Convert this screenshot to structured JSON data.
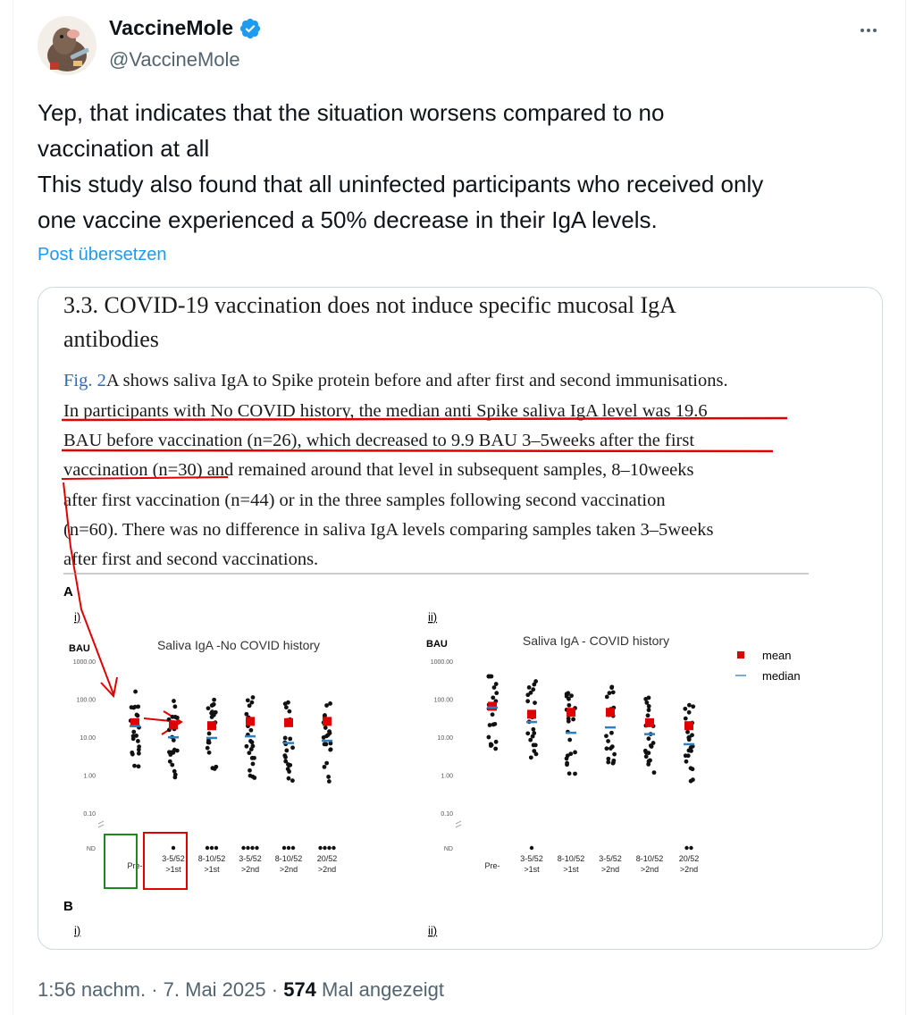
{
  "author": {
    "display_name": "VaccineMole",
    "handle": "@VaccineMole"
  },
  "tweet": {
    "lines": [
      "Yep, that  indicates that the situation worsens compared to no",
      "vaccination at all",
      "This study also found that all uninfected participants who received only",
      "one vaccine experienced a 50% decrease in their IgA levels."
    ],
    "translate_label": "Post übersetzen"
  },
  "media": {
    "heading_lines": [
      "3.3. COVID-19 vaccination does not induce specific mucosal IgA",
      "antibodies"
    ],
    "paragraph": {
      "line1_link": "Fig. 2",
      "line1_rest": "A shows saliva IgA to Spike protein before and after first and second immunisations.",
      "line2": "In participants with No COVID history, the median anti Spike saliva IgA level was 19.6",
      "line3": "BAU before vaccination (n=26), which decreased to 9.9 BAU 3–5weeks after the first",
      "line4": "vaccination (n=30) and remained around that level in subsequent samples, 8–10weeks",
      "line5": "after first vaccination (n=44) or in the three samples following second vaccination",
      "line6": "(n=60). There was no difference in saliva IgA levels comparing samples taken 3–5weeks",
      "line7": "after first and second vaccinations."
    },
    "figure": {
      "panel_a": "A",
      "panel_b": "B",
      "sub_i": "i)",
      "sub_ii": "ii)",
      "unit": "BAU",
      "legend_mean": "mean",
      "legend_median": "median",
      "mean_color": "#e00000",
      "median_color": "#4a90c8"
    }
  },
  "chart_data": [
    {
      "type": "scatter",
      "title": "Saliva IgA -No COVID history",
      "ylabel": "BAU",
      "yscale": "log",
      "yticks": [
        "1000.00",
        "100.00",
        "10.00",
        "1.00",
        "0.10",
        "ND"
      ],
      "categories": [
        [
          "Pre-"
        ],
        [
          "3-5/52",
          ">1st"
        ],
        [
          "8-10/52",
          ">1st"
        ],
        [
          "3-5/52",
          ">2nd"
        ],
        [
          "8-10/52",
          ">2nd"
        ],
        [
          "20/52",
          ">2nd"
        ]
      ],
      "series": [
        {
          "name": "mean",
          "values": [
            24,
            21,
            20,
            26,
            24,
            26
          ]
        },
        {
          "name": "median",
          "values": [
            19.6,
            9.9,
            9.5,
            10.5,
            7,
            8
          ]
        }
      ],
      "nd_counts": [
        0,
        1,
        3,
        4,
        3,
        4
      ]
    },
    {
      "type": "scatter",
      "title": "Saliva IgA - COVID history",
      "ylabel": "BAU",
      "yscale": "log",
      "yticks": [
        "1000.00",
        "100.00",
        "10.00",
        "1.00",
        "0.10",
        "ND"
      ],
      "categories": [
        [
          "Pre-"
        ],
        [
          "3-5/52",
          ">1st"
        ],
        [
          "8-10/52",
          ">1st"
        ],
        [
          "3-5/52",
          ">2nd"
        ],
        [
          "8-10/52",
          ">2nd"
        ],
        [
          "20/52",
          ">2nd"
        ]
      ],
      "series": [
        {
          "name": "mean",
          "values": [
            65,
            40,
            45,
            45,
            24,
            20
          ]
        },
        {
          "name": "median",
          "values": [
            60,
            25,
            13,
            18,
            12,
            6.5
          ]
        }
      ],
      "nd_counts": [
        0,
        1,
        0,
        0,
        0,
        2
      ]
    }
  ],
  "footer": {
    "time": "1:56 nachm.",
    "dot": "·",
    "date": "7. Mai 2025",
    "views_count": "574",
    "views_label": "Mal angezeigt"
  }
}
